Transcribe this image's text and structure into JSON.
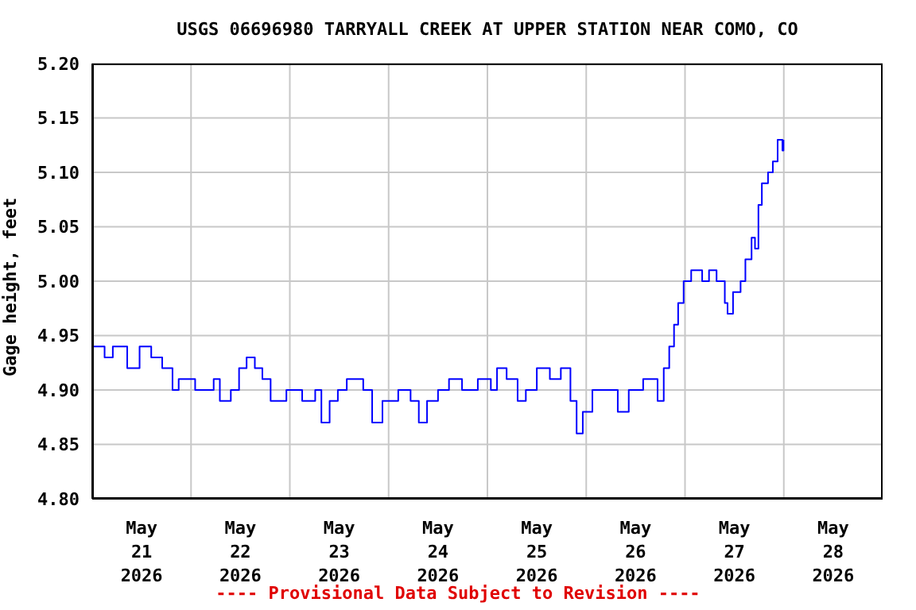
{
  "chart_data": {
    "type": "step",
    "title": "USGS 06696980 TARRYALL CREEK AT UPPER STATION NEAR COMO, CO",
    "ylabel": "Gage height, feet",
    "annotations": [
      "---- Provisional Data Subject to Revision ----"
    ],
    "x": [
      "2026-05-21T00:00",
      "2026-05-21T03:00",
      "2026-05-21T05:00",
      "2026-05-21T08:30",
      "2026-05-21T11:30",
      "2026-05-21T14:20",
      "2026-05-21T17:00",
      "2026-05-21T19:30",
      "2026-05-21T21:00",
      "2026-05-21T23:10",
      "2026-05-22T01:00",
      "2026-05-22T05:30",
      "2026-05-22T07:00",
      "2026-05-22T09:40",
      "2026-05-22T11:40",
      "2026-05-22T13:30",
      "2026-05-22T15:30",
      "2026-05-22T17:20",
      "2026-05-22T19:20",
      "2026-05-22T23:10",
      "2026-05-23T03:00",
      "2026-05-23T06:10",
      "2026-05-23T07:40",
      "2026-05-23T09:40",
      "2026-05-23T11:40",
      "2026-05-23T13:50",
      "2026-05-23T15:30",
      "2026-05-23T17:50",
      "2026-05-23T20:00",
      "2026-05-23T22:30",
      "2026-05-24T02:20",
      "2026-05-24T05:20",
      "2026-05-24T07:20",
      "2026-05-24T09:20",
      "2026-05-24T12:00",
      "2026-05-24T14:40",
      "2026-05-24T17:50",
      "2026-05-24T21:40",
      "2026-05-25T00:50",
      "2026-05-25T02:20",
      "2026-05-25T04:40",
      "2026-05-25T07:20",
      "2026-05-25T09:20",
      "2026-05-25T12:00",
      "2026-05-25T15:10",
      "2026-05-25T17:50",
      "2026-05-25T20:10",
      "2026-05-25T21:40",
      "2026-05-25T23:10",
      "2026-05-26T01:30",
      "2026-05-26T05:20",
      "2026-05-26T07:40",
      "2026-05-26T10:20",
      "2026-05-26T13:50",
      "2026-05-26T17:20",
      "2026-05-26T18:50",
      "2026-05-26T20:10",
      "2026-05-26T21:20",
      "2026-05-26T22:20",
      "2026-05-26T23:40",
      "2026-05-27T01:30",
      "2026-05-27T04:10",
      "2026-05-27T05:50",
      "2026-05-27T07:40",
      "2026-05-27T09:40",
      "2026-05-27T10:20",
      "2026-05-27T11:40",
      "2026-05-27T13:30",
      "2026-05-27T14:40",
      "2026-05-27T16:10",
      "2026-05-27T17:00",
      "2026-05-27T17:50",
      "2026-05-27T18:40",
      "2026-05-27T20:10",
      "2026-05-27T21:20",
      "2026-05-27T22:30",
      "2026-05-27T23:40",
      "2026-05-27T23:55"
    ],
    "values": [
      4.94,
      4.93,
      4.94,
      4.92,
      4.94,
      4.93,
      4.92,
      4.9,
      4.91,
      4.91,
      4.9,
      4.91,
      4.89,
      4.9,
      4.92,
      4.93,
      4.92,
      4.91,
      4.89,
      4.9,
      4.89,
      4.9,
      4.87,
      4.89,
      4.9,
      4.91,
      4.91,
      4.9,
      4.87,
      4.89,
      4.9,
      4.89,
      4.87,
      4.89,
      4.9,
      4.91,
      4.9,
      4.91,
      4.9,
      4.92,
      4.91,
      4.89,
      4.9,
      4.92,
      4.91,
      4.92,
      4.89,
      4.86,
      4.88,
      4.9,
      4.9,
      4.88,
      4.9,
      4.91,
      4.89,
      4.92,
      4.94,
      4.96,
      4.98,
      5.0,
      5.01,
      5.0,
      5.01,
      5.0,
      4.98,
      4.97,
      4.99,
      5.0,
      5.02,
      5.04,
      5.03,
      5.07,
      5.09,
      5.1,
      5.11,
      5.13,
      5.12,
      5.13
    ],
    "color": "#0000ff",
    "xlim": [
      "2026-05-21T00:00",
      "2026-05-29T00:00"
    ],
    "xticks": [
      {
        "value": "2026-05-21T12:00",
        "label": "May\n21\n2026"
      },
      {
        "value": "2026-05-22T12:00",
        "label": "May\n22\n2026"
      },
      {
        "value": "2026-05-23T12:00",
        "label": "May\n23\n2026"
      },
      {
        "value": "2026-05-24T12:00",
        "label": "May\n24\n2026"
      },
      {
        "value": "2026-05-25T12:00",
        "label": "May\n25\n2026"
      },
      {
        "value": "2026-05-26T12:00",
        "label": "May\n26\n2026"
      },
      {
        "value": "2026-05-27T12:00",
        "label": "May\n27\n2026"
      },
      {
        "value": "2026-05-28T12:00",
        "label": "May\n28\n2026"
      },
      {
        "value": "2026-05-22T00:00",
        "label": null
      },
      {
        "value": "2026-05-23T00:00",
        "label": null
      },
      {
        "value": "2026-05-24T00:00",
        "label": null
      },
      {
        "value": "2026-05-25T00:00",
        "label": null
      },
      {
        "value": "2026-05-26T00:00",
        "label": null
      },
      {
        "value": "2026-05-27T00:00",
        "label": null
      },
      {
        "value": "2026-05-28T00:00",
        "label": null
      }
    ],
    "ylim": [
      4.8,
      5.2
    ],
    "yticks": [
      {
        "value": 4.8,
        "label": "4.80"
      },
      {
        "value": 4.85,
        "label": "4.85"
      },
      {
        "value": 4.9,
        "label": "4.90"
      },
      {
        "value": 4.95,
        "label": "4.95"
      },
      {
        "value": 5.0,
        "label": "5.00"
      },
      {
        "value": 5.05,
        "label": "5.05"
      },
      {
        "value": 5.1,
        "label": "5.10"
      },
      {
        "value": 5.15,
        "label": "5.15"
      },
      {
        "value": 5.2,
        "label": "5.20"
      }
    ],
    "grid": true
  }
}
